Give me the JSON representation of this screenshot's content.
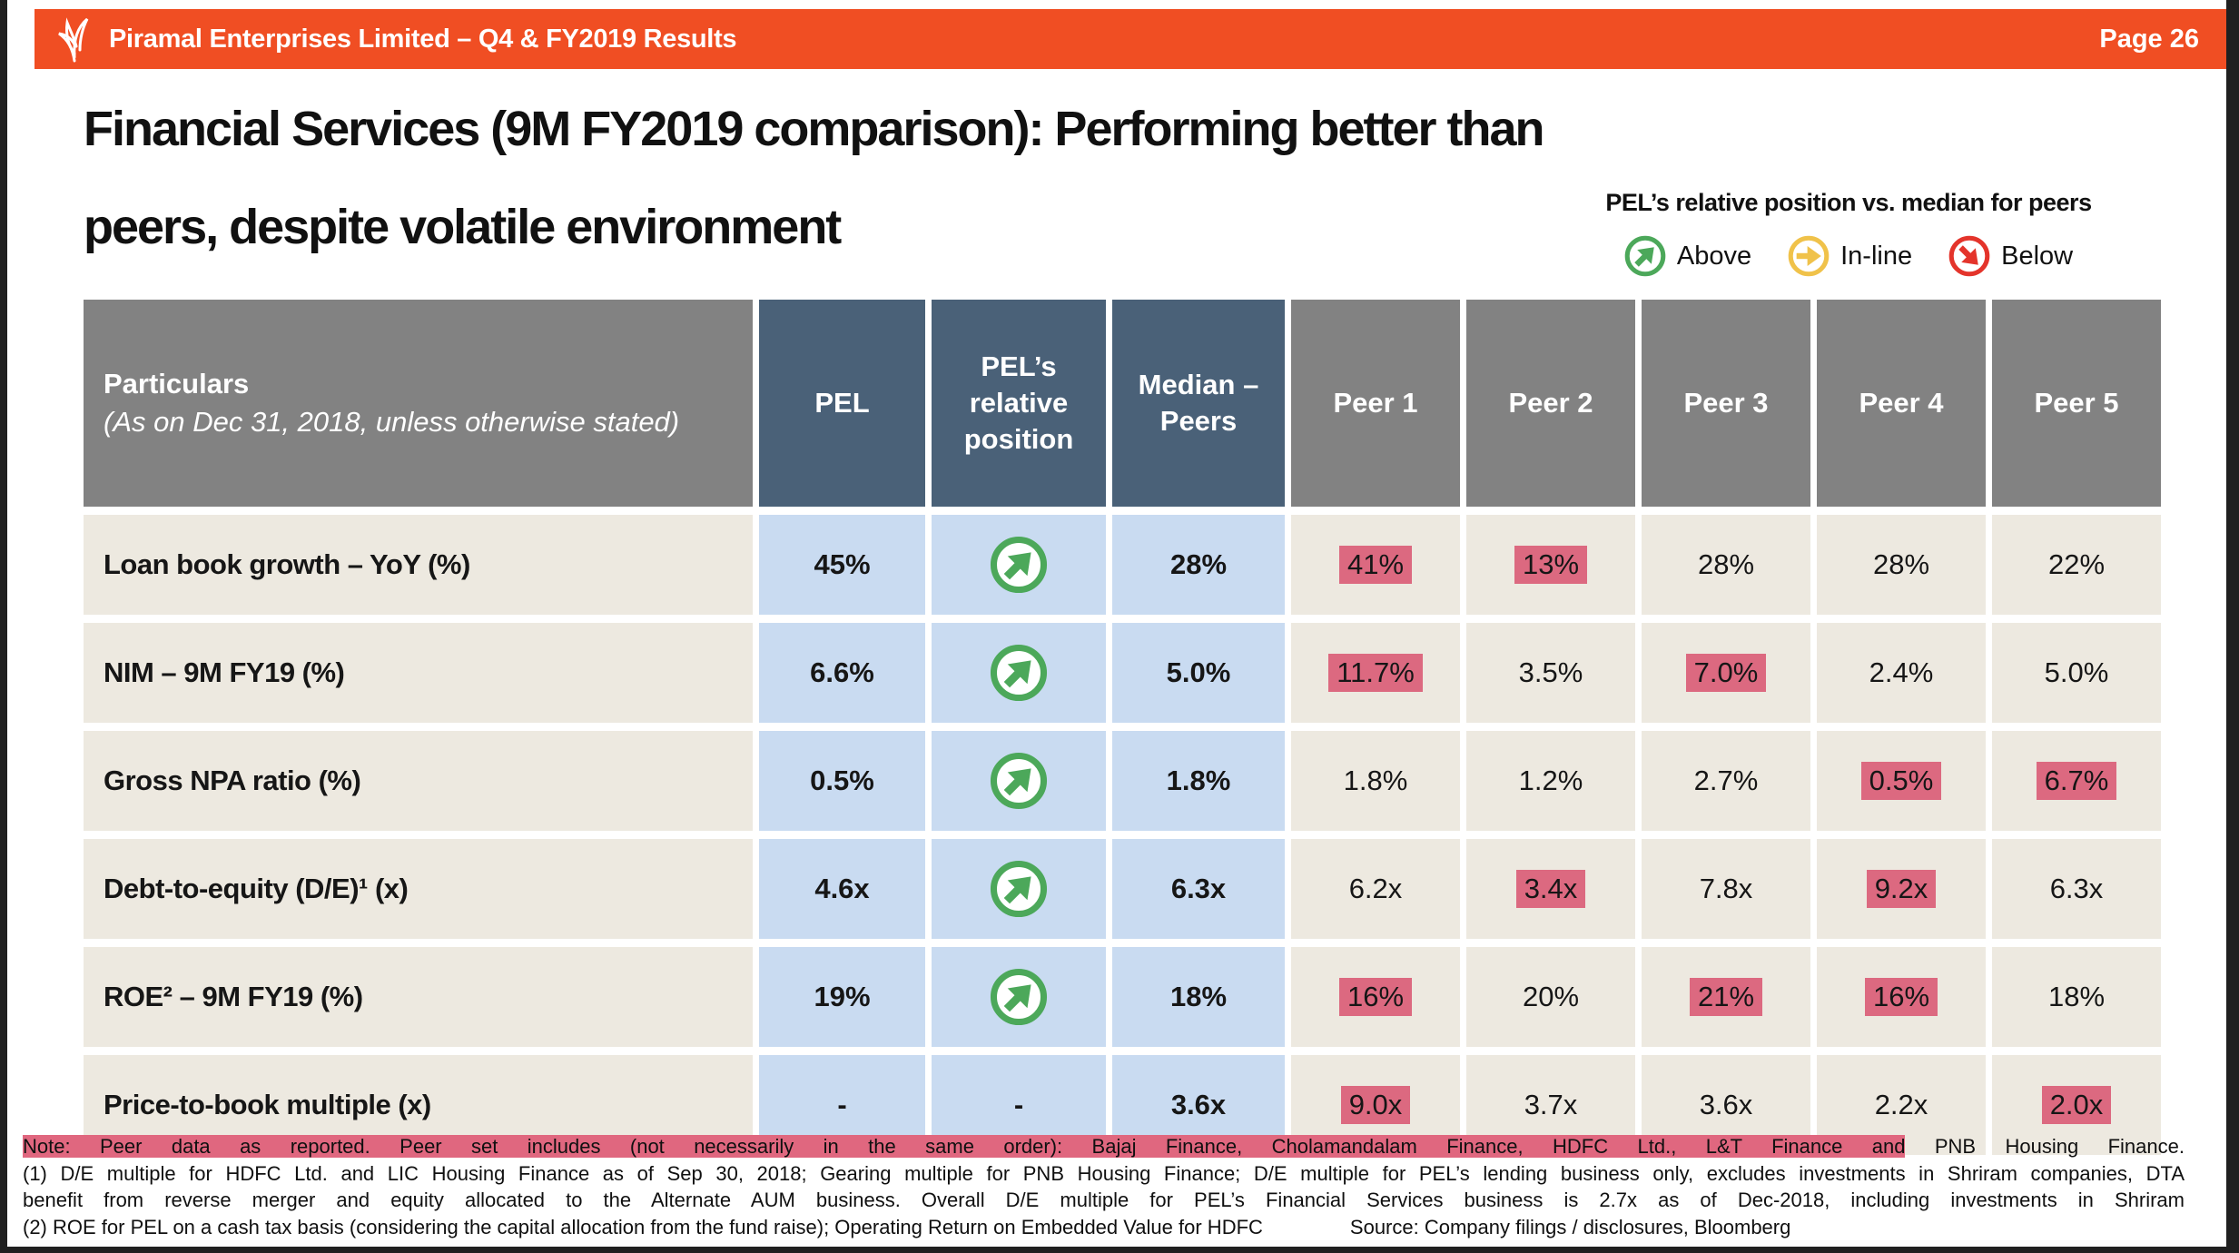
{
  "header": {
    "title": "Piramal Enterprises Limited – Q4 & FY2019 Results",
    "page": "Page 26"
  },
  "slide": {
    "title_line1": "Financial Services (9M FY2019 comparison): Performing better than",
    "title_line2": "peers, despite volatile environment"
  },
  "legend": {
    "title": "PEL’s relative position vs. median for peers",
    "items": [
      {
        "icon": "arrow-up-right-circle-icon",
        "direction": "above",
        "label": "Above",
        "color": "#4CA85A"
      },
      {
        "icon": "arrow-right-circle-icon",
        "direction": "inline",
        "label": "In-line",
        "color": "#F0C24A"
      },
      {
        "icon": "arrow-down-right-circle-icon",
        "direction": "below",
        "label": "Below",
        "color": "#E4342B"
      }
    ]
  },
  "table": {
    "header": {
      "particulars_title": "Particulars",
      "particulars_subtitle": "(As on Dec 31, 2018, unless otherwise stated)",
      "pel": "PEL",
      "relative": "PEL’s relative position",
      "median": "Median – Peers",
      "peers": [
        "Peer 1",
        "Peer 2",
        "Peer 3",
        "Peer 4",
        "Peer 5"
      ]
    },
    "rows": [
      {
        "label": "Loan book growth – YoY (%)",
        "pel": "45%",
        "position": "above",
        "median": "28%",
        "peers": [
          {
            "v": "41%",
            "hl": true
          },
          {
            "v": "13%",
            "hl": true
          },
          {
            "v": "28%",
            "hl": false
          },
          {
            "v": "28%",
            "hl": false
          },
          {
            "v": "22%",
            "hl": false
          }
        ]
      },
      {
        "label": "NIM – 9M FY19 (%)",
        "pel": "6.6%",
        "position": "above",
        "median": "5.0%",
        "peers": [
          {
            "v": "11.7%",
            "hl": true
          },
          {
            "v": "3.5%",
            "hl": false
          },
          {
            "v": "7.0%",
            "hl": true
          },
          {
            "v": "2.4%",
            "hl": false
          },
          {
            "v": "5.0%",
            "hl": false
          }
        ]
      },
      {
        "label": "Gross NPA ratio (%)",
        "pel": "0.5%",
        "position": "above",
        "median": "1.8%",
        "peers": [
          {
            "v": "1.8%",
            "hl": false
          },
          {
            "v": "1.2%",
            "hl": false
          },
          {
            "v": "2.7%",
            "hl": false
          },
          {
            "v": "0.5%",
            "hl": true
          },
          {
            "v": "6.7%",
            "hl": true
          }
        ]
      },
      {
        "label": "Debt-to-equity (D/E)¹ (x)",
        "pel": "4.6x",
        "position": "above",
        "median": "6.3x",
        "peers": [
          {
            "v": "6.2x",
            "hl": false
          },
          {
            "v": "3.4x",
            "hl": true
          },
          {
            "v": "7.8x",
            "hl": false
          },
          {
            "v": "9.2x",
            "hl": true
          },
          {
            "v": "6.3x",
            "hl": false
          }
        ]
      },
      {
        "label": "ROE² – 9M FY19 (%)",
        "pel": "19%",
        "position": "above",
        "median": "18%",
        "peers": [
          {
            "v": "16%",
            "hl": true
          },
          {
            "v": "20%",
            "hl": false
          },
          {
            "v": "21%",
            "hl": true
          },
          {
            "v": "16%",
            "hl": true
          },
          {
            "v": "18%",
            "hl": false
          }
        ]
      },
      {
        "label": "Price-to-book multiple (x)",
        "pel": "-",
        "position": "-",
        "median": "3.6x",
        "peers": [
          {
            "v": "9.0x",
            "hl": true
          },
          {
            "v": "3.7x",
            "hl": false
          },
          {
            "v": "3.6x",
            "hl": false
          },
          {
            "v": "2.2x",
            "hl": false
          },
          {
            "v": "2.0x",
            "hl": true
          }
        ]
      }
    ]
  },
  "notes": {
    "line1_highlight": "Note: Peer data as reported. Peer set includes (not necessarily in the same order): Bajaj Finance, Cholamandalam Finance, HDFC Ltd., L&T Finance and",
    "line1_rest": "PNB Housing Finance.",
    "line2": "(1) D/E multiple for HDFC Ltd. and LIC Housing Finance as of Sep 30, 2018; Gearing multiple for PNB Housing Finance; D/E multiple for PEL’s lending business only, excludes investments in Shriram companies, DTA",
    "line3": "benefit from reverse merger and equity allocated to the Alternate AUM business. Overall D/E multiple for PEL’s Financial Services business is 2.7x as of Dec-2018, including investments in Shriram",
    "line4": "(2) ROE for PEL on a cash tax basis (considering the capital allocation from the fund raise); Operating Return on Embedded Value for HDFC",
    "source": "Source: Company filings / disclosures, Bloomberg"
  },
  "colors": {
    "brand_orange": "#F04E23",
    "header_slate": "#4A6178",
    "header_gray": "#828282",
    "cell_beige": "#EDE9E0",
    "cell_lightblue": "#C9DBF1",
    "highlight_pink": "#DC6980",
    "note_highlight_pink": "#E0677F",
    "legend_green": "#4CA85A",
    "legend_amber": "#F0C24A",
    "legend_red": "#E4342B"
  }
}
